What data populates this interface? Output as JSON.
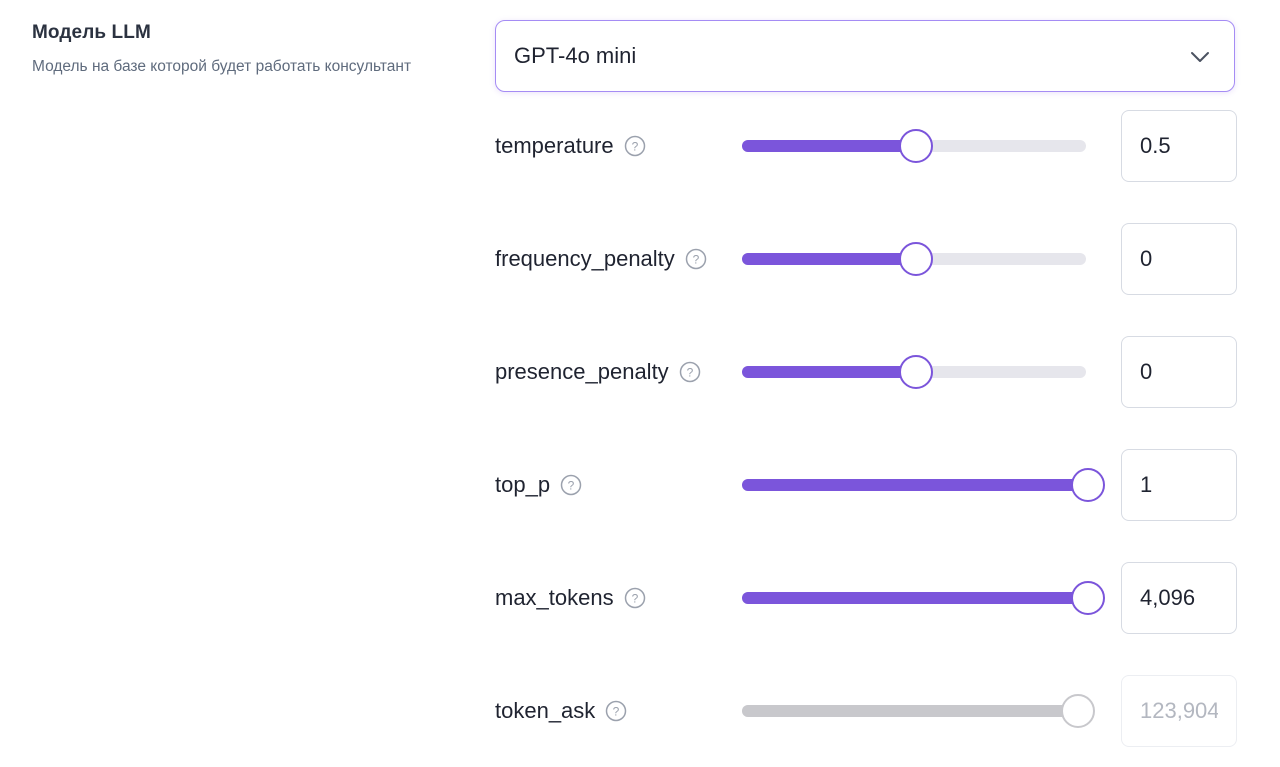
{
  "model_section": {
    "title": "Модель LLM",
    "description": "Модель на базе которой будет работать консультант"
  },
  "model_select": {
    "value": "GPT-4o mini",
    "icon": "chevron-down-icon"
  },
  "colors": {
    "accent": "#7b55db",
    "accent_border": "#a58cf4",
    "track": "#e6e6ec",
    "disabled": "#c8c8cc"
  },
  "params": [
    {
      "name": "temperature",
      "label": "temperature",
      "value": "0.5",
      "level": 0.5,
      "disabled": false
    },
    {
      "name": "frequency-penalty",
      "label": "frequency_penalty",
      "value": "0",
      "level": 0.5,
      "disabled": false
    },
    {
      "name": "presence-penalty",
      "label": "presence_penalty",
      "value": "0",
      "level": 0.5,
      "disabled": false
    },
    {
      "name": "top-p",
      "label": "top_p",
      "value": "1",
      "level": 1.0,
      "disabled": false
    },
    {
      "name": "max-tokens",
      "label": "max_tokens",
      "value": "4,096",
      "level": 1.0,
      "disabled": false
    },
    {
      "name": "token-ask",
      "label": "token_ask",
      "value": "123,904",
      "level": 0.97,
      "disabled": true
    }
  ]
}
